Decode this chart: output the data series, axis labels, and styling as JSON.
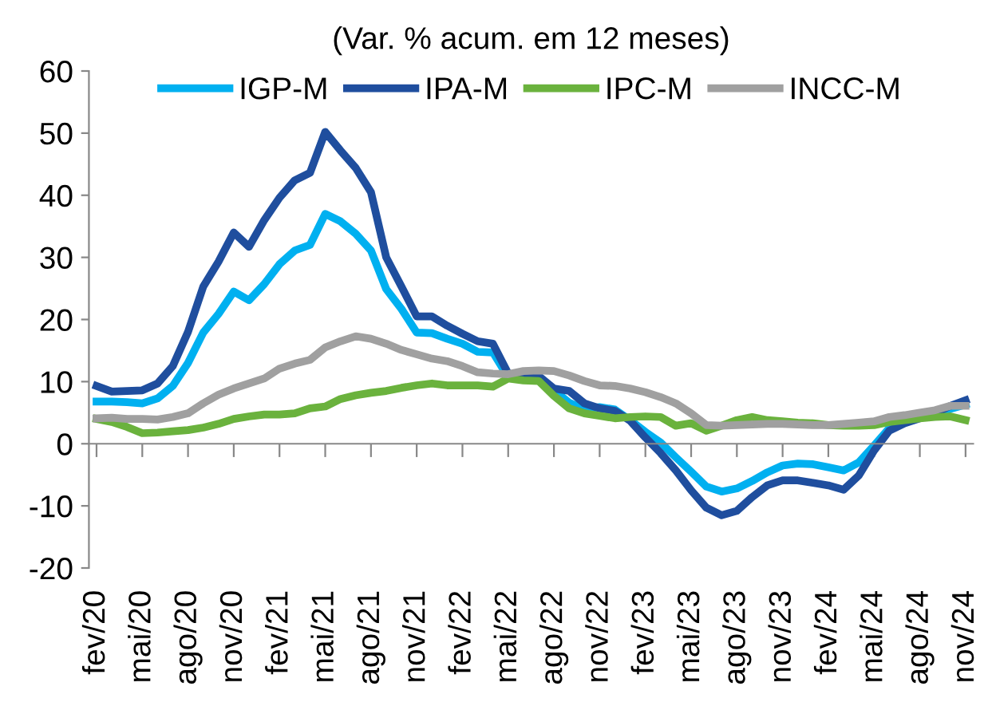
{
  "chart_data": {
    "type": "line",
    "title": "(Var. % acum. em 12 meses)",
    "categories": [
      "fev/20",
      null,
      null,
      "mai/20",
      null,
      null,
      "ago/20",
      null,
      null,
      "nov/20",
      null,
      null,
      "fev/21",
      null,
      null,
      "mai/21",
      null,
      null,
      "ago/21",
      null,
      null,
      "nov/21",
      null,
      null,
      "fev/22",
      null,
      null,
      "mai/22",
      null,
      null,
      "ago/22",
      null,
      null,
      "nov/22",
      null,
      null,
      "fev/23",
      null,
      null,
      "mai/23",
      null,
      null,
      "ago/23",
      null,
      null,
      "nov/23",
      null,
      null,
      "fev/24",
      null,
      null,
      "mai/24",
      null,
      null,
      "ago/24",
      null,
      null,
      "nov/24"
    ],
    "series": [
      {
        "name": "IGP-M",
        "color": "#00b0f0",
        "values": [
          6.8,
          6.8,
          6.7,
          6.5,
          7.3,
          9.3,
          13.0,
          17.9,
          20.9,
          24.5,
          23.1,
          25.7,
          28.9,
          31.1,
          32.0,
          37.0,
          35.8,
          33.8,
          31.1,
          24.9,
          21.7,
          17.9,
          17.8,
          16.9,
          16.1,
          14.8,
          14.7,
          10.7,
          10.7,
          10.1,
          8.6,
          6.6,
          5.6,
          5.9,
          5.5,
          3.8,
          1.9,
          0.2,
          -2.2,
          -4.5,
          -6.9,
          -7.7,
          -7.2,
          -6.0,
          -4.6,
          -3.5,
          -3.2,
          -3.3,
          -3.8,
          -4.3,
          -3.0,
          -0.3,
          2.5,
          3.8,
          4.3,
          4.5,
          5.6,
          6.3
        ]
      },
      {
        "name": "IPA-M",
        "color": "#1f4e9e",
        "values": [
          9.3,
          8.4,
          8.5,
          8.6,
          9.7,
          12.5,
          18.0,
          25.3,
          29.3,
          34.0,
          31.7,
          36.0,
          39.6,
          42.4,
          43.6,
          50.2,
          47.2,
          44.4,
          40.5,
          30.0,
          25.3,
          20.5,
          20.5,
          19.0,
          17.7,
          16.5,
          16.1,
          11.3,
          10.9,
          10.9,
          8.9,
          8.5,
          6.5,
          5.7,
          5.3,
          3.7,
          1.0,
          -1.5,
          -4.3,
          -7.5,
          -10.3,
          -11.5,
          -10.8,
          -8.6,
          -6.7,
          -5.9,
          -5.9,
          -6.3,
          -6.7,
          -7.4,
          -5.1,
          -1.1,
          2.1,
          3.3,
          4.1,
          4.9,
          6.1,
          7.0
        ]
      },
      {
        "name": "IPC-M",
        "color": "#6ab23d",
        "values": [
          4.0,
          3.5,
          2.7,
          1.7,
          1.8,
          2.0,
          2.2,
          2.6,
          3.2,
          4.0,
          4.4,
          4.7,
          4.7,
          4.9,
          5.7,
          6.0,
          7.2,
          7.8,
          8.2,
          8.5,
          9.0,
          9.4,
          9.7,
          9.4,
          9.4,
          9.4,
          9.2,
          10.5,
          10.2,
          10.1,
          7.7,
          5.7,
          4.9,
          4.5,
          4.1,
          4.3,
          4.4,
          4.3,
          2.9,
          3.3,
          2.1,
          2.9,
          3.8,
          4.3,
          3.8,
          3.6,
          3.4,
          3.3,
          3.0,
          2.9,
          2.9,
          3.0,
          3.5,
          3.8,
          4.1,
          4.3,
          4.4,
          3.8
        ]
      },
      {
        "name": "INCC-M",
        "color": "#a0a0a0",
        "values": [
          4.1,
          4.2,
          4.0,
          4.0,
          3.9,
          4.3,
          4.9,
          6.5,
          7.9,
          8.9,
          9.7,
          10.5,
          12.1,
          12.9,
          13.5,
          15.5,
          16.5,
          17.3,
          16.9,
          16.1,
          15.1,
          14.4,
          13.7,
          13.3,
          12.5,
          11.5,
          11.3,
          11.2,
          11.7,
          11.8,
          11.7,
          11.0,
          10.1,
          9.4,
          9.3,
          8.9,
          8.3,
          7.5,
          6.5,
          4.9,
          3.0,
          2.9,
          3.0,
          3.1,
          3.2,
          3.2,
          3.1,
          3.0,
          3.0,
          3.2,
          3.4,
          3.6,
          4.3,
          4.6,
          5.0,
          5.4,
          6.1,
          6.1
        ]
      }
    ],
    "ylim": [
      -20,
      60
    ],
    "yticks": [
      -20,
      -10,
      0,
      10,
      20,
      30,
      40,
      50,
      60
    ],
    "legend": "top",
    "line_style": "solid",
    "marker": "none"
  }
}
